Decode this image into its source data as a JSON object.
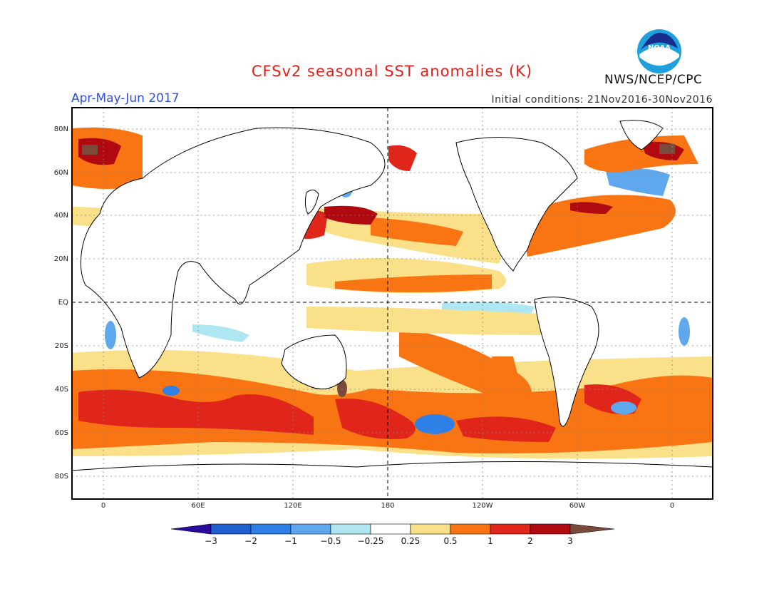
{
  "header": {
    "title": "CFSv2 seasonal SST anomalies (K)",
    "season": "Apr-May-Jun 2017",
    "initial_conditions": "Initial conditions: 21Nov2016-30Nov2016",
    "agency": "NWS/NCEP/CPC",
    "logo_text": "NOAA"
  },
  "axes": {
    "lat_labels": [
      "80N",
      "60N",
      "40N",
      "20N",
      "EQ",
      "20S",
      "40S",
      "60S",
      "80S"
    ],
    "lon_labels": [
      "0",
      "60E",
      "120E",
      "180",
      "120W",
      "60W",
      "0"
    ]
  },
  "colorbar": {
    "labels": [
      "-3",
      "-2",
      "-1",
      "-0.5",
      "-0.25",
      "0.25",
      "0.5",
      "1",
      "2",
      "3"
    ],
    "colors": [
      "#2a0a9e",
      "#1f5fd0",
      "#2f80e6",
      "#5fa8ee",
      "#aee6f2",
      "#ffffff",
      "#fbe08a",
      "#f97412",
      "#e0261b",
      "#b00a10",
      "#7a4a3a"
    ]
  }
}
